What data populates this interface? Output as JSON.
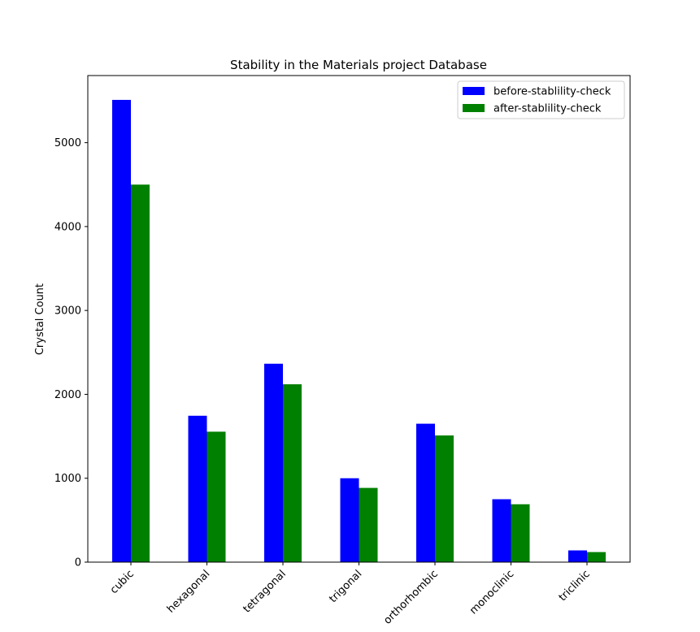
{
  "chart_data": {
    "type": "bar",
    "title": "Stability in the Materials project Database",
    "xlabel": "",
    "ylabel": "Crystal Count",
    "categories": [
      "cubic",
      "hexagonal",
      "tetragonal",
      "trigonal",
      "orthorhombic",
      "monoclinic",
      "triclinic"
    ],
    "series": [
      {
        "name": "before-stablility-check",
        "color": "#0000ff",
        "values": [
          5510,
          1745,
          2365,
          1000,
          1650,
          750,
          140
        ]
      },
      {
        "name": "after-stablility-check",
        "color": "#008000",
        "values": [
          4500,
          1555,
          2120,
          885,
          1510,
          690,
          120
        ]
      }
    ],
    "ylim": [
      0,
      5800
    ],
    "yticks": [
      0,
      1000,
      2000,
      3000,
      4000,
      5000
    ],
    "ytick_labels": [
      "0",
      "1000",
      "2000",
      "3000",
      "4000",
      "5000"
    ],
    "legend_position": "top-right",
    "grid": false
  }
}
